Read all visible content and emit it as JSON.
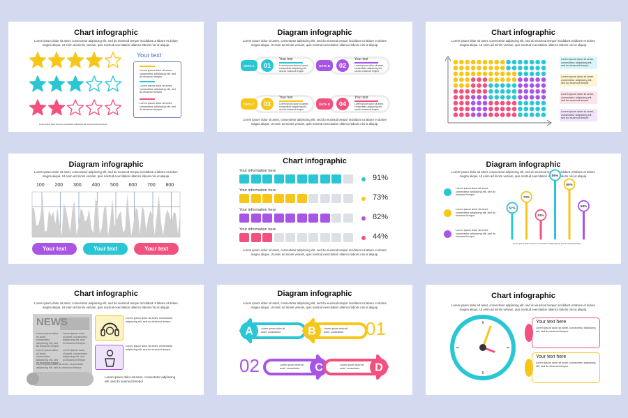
{
  "lorem": "Lorem ipsum dolor sit amet, consectetur adipiscing elit, sed do eiusmod tempor incididunt ut labore et dolore magna aliqua. Ut enim ad minim veniam, quis nostrud exercitation ullamco laboris nisi ut aliquip.",
  "lorem_short": "Lorem ipsum dolor sit amet, consectetur adipiscing elit, sed do eiusmod tempor",
  "lorem_mini": "Lorem ipsum dolor sit amet, consectetur adipiscing elit, sed do eiusmod tempor",
  "colors": {
    "cyan": "#29c6d6",
    "yellow": "#f6c619",
    "pink": "#f2517f",
    "purple": "#a855e6",
    "bg": "#d3d9ee"
  },
  "slide1": {
    "title": "Chart infographic",
    "legend_title": "Your text",
    "ratings": [
      {
        "color": "yellow",
        "filled": 4,
        "total": 5
      },
      {
        "color": "cyan",
        "filled": 3,
        "total": 5
      },
      {
        "color": "pink",
        "filled": 2,
        "total": 5
      }
    ]
  },
  "slide2": {
    "title": "Diagram infographic",
    "items": [
      {
        "tag": "DATA A",
        "num": "01",
        "color": "cyan",
        "label": "Your text"
      },
      {
        "tag": "DATA B",
        "num": "02",
        "color": "purple",
        "label": "Your text"
      },
      {
        "tag": "DATA C",
        "num": "03",
        "color": "yellow",
        "label": "Your text"
      },
      {
        "tag": "DATA D",
        "num": "04",
        "color": "pink",
        "label": "Your text"
      }
    ]
  },
  "slide3": {
    "title": "Chart infographic"
  },
  "slide4": {
    "title": "Diagram infographic",
    "axis_ticks": [
      "100",
      "200",
      "300",
      "400",
      "500",
      "600",
      "700",
      "800"
    ],
    "buttons": [
      "Your text",
      "Your text",
      "Your text"
    ]
  },
  "slide5": {
    "title": "Chart infographic",
    "chart_data": {
      "type": "bar",
      "categories": [
        "Your information here",
        "Your information here",
        "Your information here",
        "Your information here"
      ],
      "values": [
        91,
        73,
        82,
        44
      ],
      "value_labels": [
        "91%",
        "73%",
        "82%",
        "44%"
      ],
      "ylim": [
        0,
        100
      ]
    }
  },
  "slide6": {
    "title": "Diagram infographic",
    "chart_data": {
      "type": "bar",
      "categories": [
        "1",
        "2",
        "3",
        "4",
        "5",
        "6"
      ],
      "values": [
        67,
        73,
        63,
        85,
        80,
        68
      ],
      "value_labels": [
        "67%",
        "73%",
        "63%",
        "85%",
        "80%",
        "68%"
      ]
    }
  },
  "slide7": {
    "title": "Chart infographic",
    "news": "NEWS"
  },
  "slide8": {
    "title": "Diagram infographic",
    "arrows": [
      "A",
      "B",
      "C",
      "D"
    ],
    "numbers": [
      "01",
      "02"
    ]
  },
  "slide9": {
    "title": "Chart infographic",
    "cards": [
      "Your text here",
      "Your text here"
    ]
  }
}
